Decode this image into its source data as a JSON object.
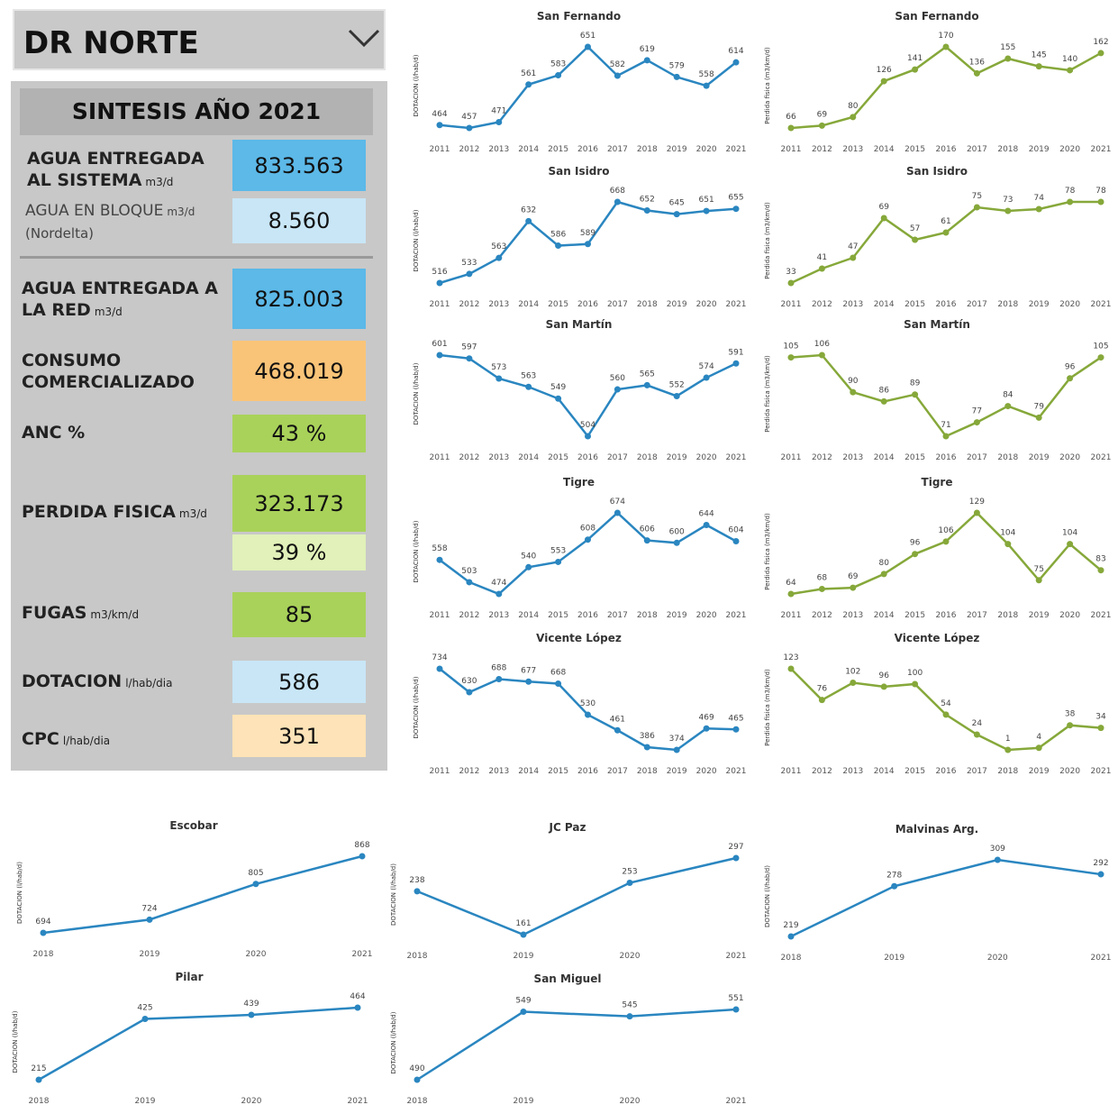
{
  "panel": {
    "title": "DR NORTE",
    "subtitle": "SINTESIS AÑO 2021",
    "rows": [
      {
        "label": "AGUA ENTREGADA AL SISTEMA",
        "unit": "m3/d",
        "value": "833.563"
      },
      {
        "label": "AGUA EN BLOQUE",
        "unit": "m3/d",
        "note": "(Nordelta)",
        "value": "8.560"
      },
      {
        "label": "AGUA ENTREGADA A LA RED",
        "unit": "m3/d",
        "value": "825.003"
      },
      {
        "label": "CONSUMO COMERCIALIZADO",
        "value": "468.019"
      },
      {
        "label": "ANC %",
        "value": "43 %"
      },
      {
        "label": "PERDIDA FISICA",
        "unit": "m3/d",
        "value": "323.173",
        "value2": "39 %"
      },
      {
        "label": "FUGAS",
        "unit": "m3/km/d",
        "value": "85"
      },
      {
        "label": "DOTACION",
        "unit": "l/hab/dia",
        "value": "586"
      },
      {
        "label": "CPC",
        "unit": "l/hab/dia",
        "value": "351"
      }
    ]
  },
  "chart_data": [
    {
      "type": "line",
      "title": "San Fernando",
      "y_label": "DOTACION (l/hab/d)",
      "color": "#2a86c0",
      "categories": [
        "2011",
        "2012",
        "2013",
        "2014",
        "2015",
        "2016",
        "2017",
        "2018",
        "2019",
        "2020",
        "2021"
      ],
      "values": [
        464,
        457,
        471,
        561,
        583,
        651,
        582,
        619,
        579,
        558,
        614
      ]
    },
    {
      "type": "line",
      "title": "San Fernando",
      "y_label": "Perdida fisica (m3/km/d)",
      "color": "#86a83a",
      "categories": [
        "2011",
        "2012",
        "2013",
        "2014",
        "2015",
        "2016",
        "2017",
        "2018",
        "2019",
        "2020",
        "2021"
      ],
      "values": [
        66,
        69,
        80,
        126,
        141,
        170,
        136,
        155,
        145,
        140,
        162
      ]
    },
    {
      "type": "line",
      "title": "San Isidro",
      "y_label": "DOTACION (l/hab/d)",
      "color": "#2a86c0",
      "categories": [
        "2011",
        "2012",
        "2013",
        "2014",
        "2015",
        "2016",
        "2017",
        "2018",
        "2019",
        "2020",
        "2021"
      ],
      "values": [
        516,
        533,
        563,
        632,
        586,
        589,
        668,
        652,
        645,
        651,
        655
      ]
    },
    {
      "type": "line",
      "title": "San Isidro",
      "y_label": "Perdida fisica (m3/km/d)",
      "color": "#86a83a",
      "categories": [
        "2011",
        "2012",
        "2013",
        "2014",
        "2015",
        "2016",
        "2017",
        "2018",
        "2019",
        "2020",
        "2021"
      ],
      "values": [
        33,
        41,
        47,
        69,
        57,
        61,
        75,
        73,
        74,
        78,
        78
      ]
    },
    {
      "type": "line",
      "title": "San Martín",
      "y_label": "DOTACION (l/hab/d)",
      "color": "#2a86c0",
      "categories": [
        "2011",
        "2012",
        "2013",
        "2014",
        "2015",
        "2016",
        "2017",
        "2018",
        "2019",
        "2020",
        "2021"
      ],
      "values": [
        601,
        597,
        573,
        563,
        549,
        504,
        560,
        565,
        552,
        574,
        591
      ]
    },
    {
      "type": "line",
      "title": "San Martín",
      "y_label": "Perdida fisica (m3/km/d)",
      "color": "#86a83a",
      "categories": [
        "2011",
        "2012",
        "2013",
        "2014",
        "2015",
        "2016",
        "2017",
        "2018",
        "2019",
        "2020",
        "2021"
      ],
      "values": [
        105,
        106,
        90,
        86,
        89,
        71,
        77,
        84,
        79,
        96,
        105
      ]
    },
    {
      "type": "line",
      "title": "Tigre",
      "y_label": "DOTACION (l/hab/d)",
      "color": "#2a86c0",
      "categories": [
        "2011",
        "2012",
        "2013",
        "2014",
        "2015",
        "2016",
        "2017",
        "2018",
        "2019",
        "2020",
        "2021"
      ],
      "values": [
        558,
        503,
        474,
        540,
        553,
        608,
        674,
        606,
        600,
        644,
        604
      ]
    },
    {
      "type": "line",
      "title": "Tigre",
      "y_label": "Perdida fisica (m3/km/d)",
      "color": "#86a83a",
      "categories": [
        "2011",
        "2012",
        "2013",
        "2014",
        "2015",
        "2016",
        "2017",
        "2018",
        "2019",
        "2020",
        "2021"
      ],
      "values": [
        64,
        68,
        69,
        80,
        96,
        106,
        129,
        104,
        75,
        104,
        83
      ]
    },
    {
      "type": "line",
      "title": "Vicente López",
      "y_label": "DOTACION (l/hab/d)",
      "color": "#2a86c0",
      "categories": [
        "2011",
        "2012",
        "2013",
        "2014",
        "2015",
        "2016",
        "2017",
        "2018",
        "2019",
        "2020",
        "2021"
      ],
      "values": [
        734,
        630,
        688,
        677,
        668,
        530,
        461,
        386,
        374,
        469,
        465
      ]
    },
    {
      "type": "line",
      "title": "Vicente López",
      "y_label": "Perdida fisica (m3/km/d)",
      "color": "#86a83a",
      "categories": [
        "2011",
        "2012",
        "2013",
        "2014",
        "2015",
        "2016",
        "2017",
        "2018",
        "2019",
        "2020",
        "2021"
      ],
      "values": [
        123,
        76,
        102,
        96,
        100,
        54,
        24,
        1,
        4,
        38,
        34
      ]
    },
    {
      "type": "line",
      "title": "Escobar",
      "y_label": "DOTACION (l/hab/d)",
      "color": "#2a86c0",
      "categories": [
        "2018",
        "2019",
        "2020",
        "2021"
      ],
      "values": [
        694,
        724,
        805,
        868
      ]
    },
    {
      "type": "line",
      "title": "JC Paz",
      "y_label": "DOTACION (l/hab/d)",
      "color": "#2a86c0",
      "categories": [
        "2018",
        "2019",
        "2020",
        "2021"
      ],
      "values": [
        238,
        161,
        253,
        297
      ]
    },
    {
      "type": "line",
      "title": "Malvinas Arg.",
      "y_label": "DOTACION (l/hab/d)",
      "color": "#2a86c0",
      "categories": [
        "2018",
        "2019",
        "2020",
        "2021"
      ],
      "values": [
        219,
        278,
        309,
        292
      ]
    },
    {
      "type": "line",
      "title": "Pilar",
      "y_label": "DOTACION (l/hab/d)",
      "color": "#2a86c0",
      "categories": [
        "2018",
        "2019",
        "2020",
        "2021"
      ],
      "values": [
        215,
        425,
        439,
        464
      ]
    },
    {
      "type": "line",
      "title": "San Miguel",
      "y_label": "DOTACION (l/hab/d)",
      "color": "#2a86c0",
      "categories": [
        "2018",
        "2019",
        "2020",
        "2021"
      ],
      "values": [
        490,
        549,
        545,
        551
      ]
    }
  ]
}
